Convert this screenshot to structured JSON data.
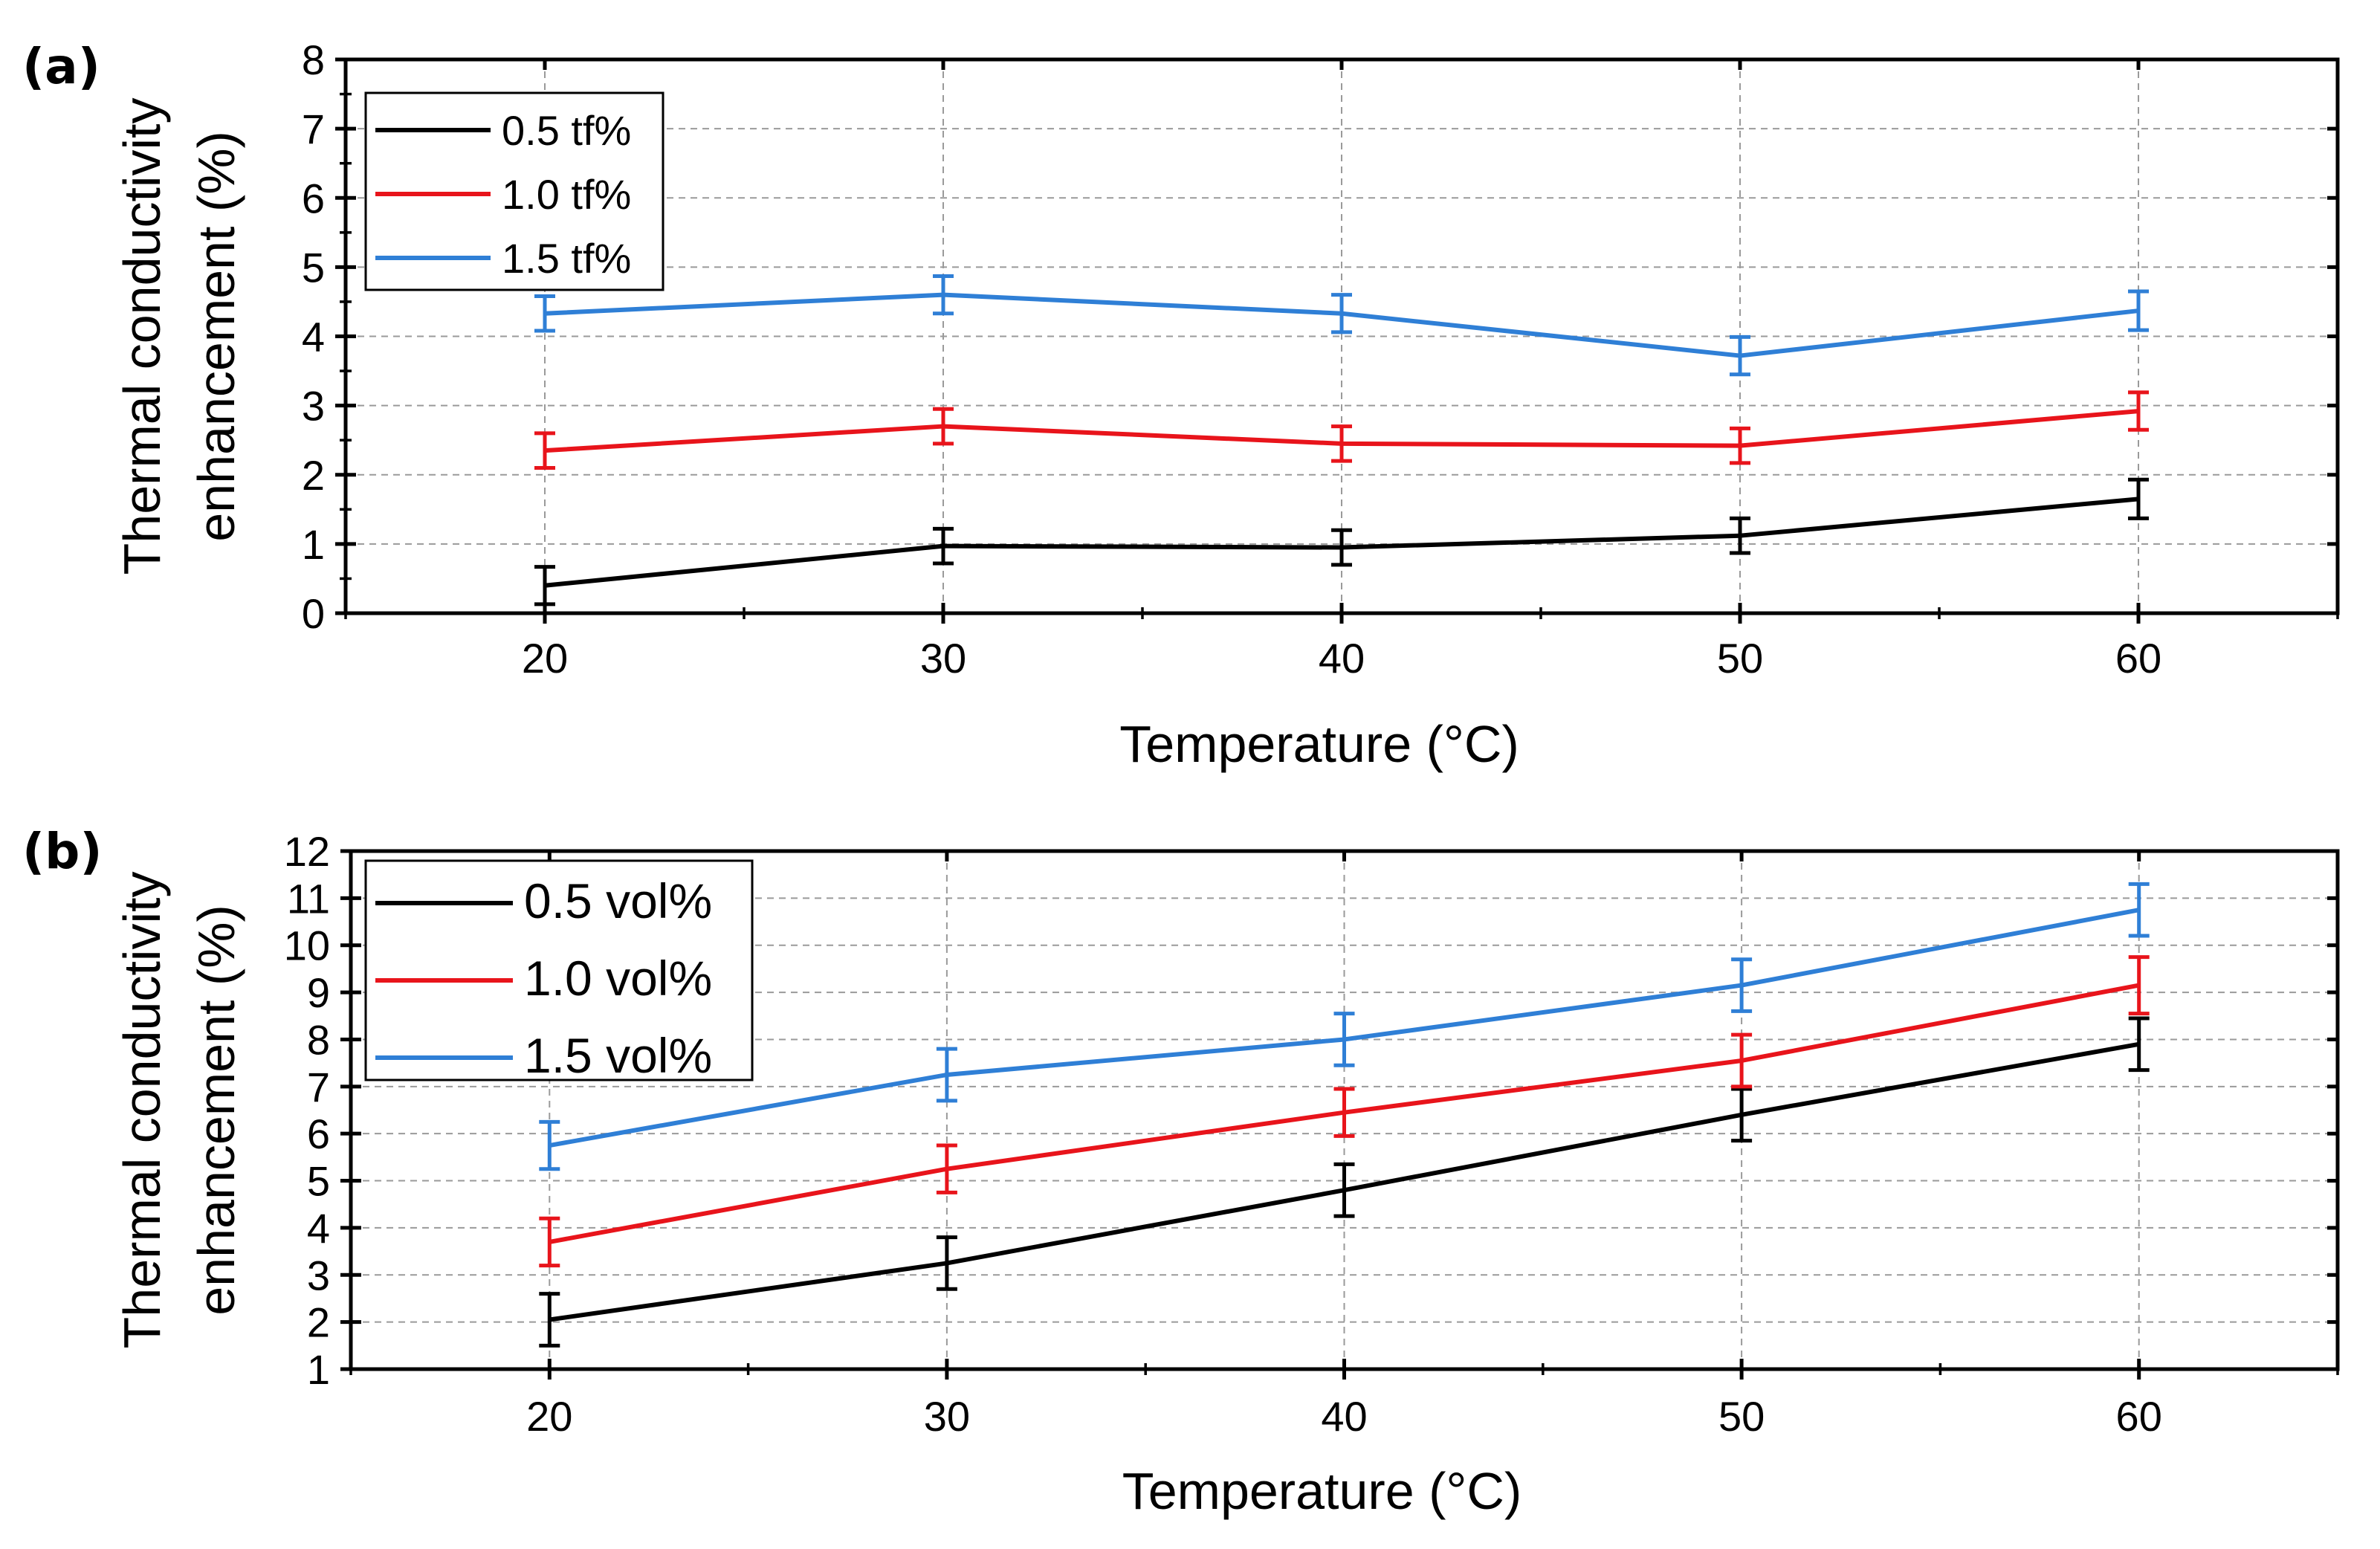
{
  "chart_data": [
    {
      "panel_label": "(a)",
      "type": "line",
      "title": "",
      "xlabel": "Temperature (°C)",
      "ylabel_line1": "Thermal conductivity",
      "ylabel_line2": "enhancement (%)",
      "x": [
        20,
        30,
        40,
        50,
        60
      ],
      "xlim": [
        15,
        65
      ],
      "ylim": [
        0,
        8
      ],
      "x_ticks": [
        20,
        30,
        40,
        50,
        60
      ],
      "x_tick_labels": [
        "20",
        "30",
        "40",
        "50",
        "60"
      ],
      "y_ticks": [
        0,
        1,
        2,
        3,
        4,
        5,
        6,
        7,
        8
      ],
      "y_tick_labels": [
        "0",
        "1",
        "2",
        "3",
        "4",
        "5",
        "6",
        "7",
        "8"
      ],
      "grid": true,
      "legend_position": "top-left",
      "series": [
        {
          "name": "0.5 tf%",
          "color": "#000000",
          "values": [
            0.4,
            0.97,
            0.95,
            1.12,
            1.65
          ],
          "errors": [
            0.27,
            0.25,
            0.25,
            0.25,
            0.28
          ]
        },
        {
          "name": "1.0 tf%",
          "color": "#e8141b",
          "values": [
            2.35,
            2.7,
            2.45,
            2.42,
            2.92
          ],
          "errors": [
            0.25,
            0.25,
            0.25,
            0.25,
            0.27
          ]
        },
        {
          "name": "1.5 tf%",
          "color": "#2f7fd6",
          "values": [
            4.33,
            4.6,
            4.33,
            3.72,
            4.37
          ],
          "errors": [
            0.25,
            0.27,
            0.27,
            0.27,
            0.28
          ]
        }
      ]
    },
    {
      "panel_label": "(b)",
      "type": "line",
      "title": "",
      "xlabel": "Temperature (°C)",
      "ylabel_line1": "Thermal conductivity",
      "ylabel_line2": "enhancement (%)",
      "x": [
        20,
        30,
        40,
        50,
        60
      ],
      "xlim": [
        15,
        65
      ],
      "ylim": [
        1,
        12
      ],
      "x_ticks": [
        20,
        30,
        40,
        50,
        60
      ],
      "x_tick_labels": [
        "20",
        "30",
        "40",
        "50",
        "60"
      ],
      "y_ticks": [
        1,
        2,
        3,
        4,
        5,
        6,
        7,
        8,
        9,
        10,
        11,
        12
      ],
      "y_tick_labels": [
        "1",
        "2",
        "3",
        "4",
        "5",
        "6",
        "7",
        "8",
        "9",
        "10",
        "11",
        "12"
      ],
      "grid": true,
      "legend_position": "top-left",
      "series": [
        {
          "name": "0.5 vol%",
          "color": "#000000",
          "values": [
            2.05,
            3.25,
            4.8,
            6.4,
            7.9
          ],
          "errors": [
            0.55,
            0.55,
            0.55,
            0.55,
            0.55
          ]
        },
        {
          "name": "1.0 vol%",
          "color": "#e8141b",
          "values": [
            3.7,
            5.25,
            6.45,
            7.55,
            9.15
          ],
          "errors": [
            0.5,
            0.5,
            0.5,
            0.55,
            0.6
          ]
        },
        {
          "name": "1.5 vol%",
          "color": "#2f7fd6",
          "values": [
            5.75,
            7.25,
            8.0,
            9.15,
            10.75
          ],
          "errors": [
            0.5,
            0.55,
            0.55,
            0.55,
            0.55
          ]
        }
      ]
    }
  ]
}
